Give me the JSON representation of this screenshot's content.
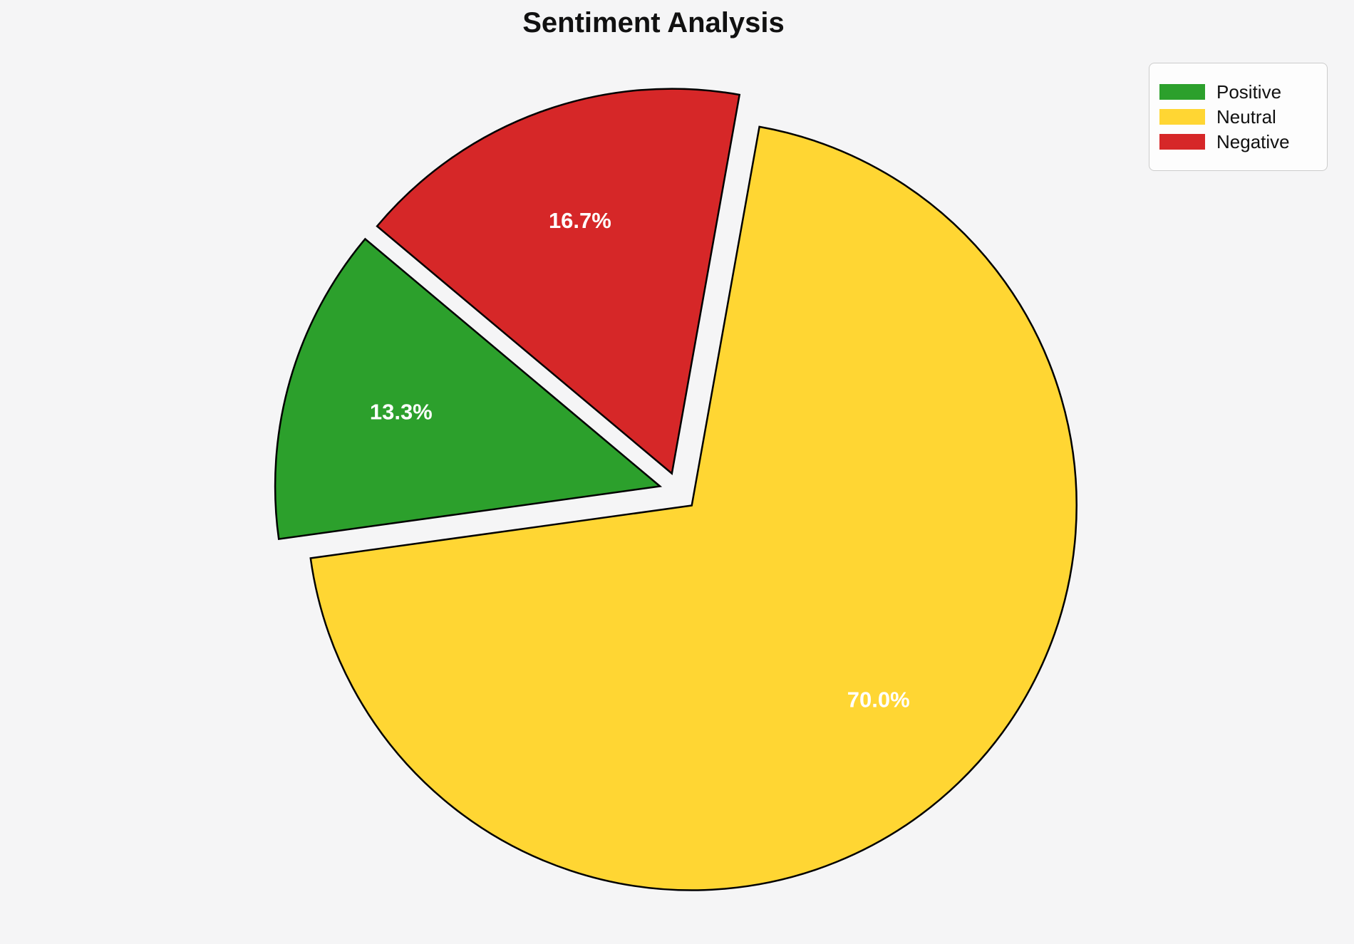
{
  "title": "Sentiment Analysis",
  "background_color": "#f5f5f6",
  "chart_data": {
    "type": "pie",
    "title": "Sentiment Analysis",
    "categories": [
      "Positive",
      "Neutral",
      "Negative"
    ],
    "values": [
      13.3,
      70.0,
      16.7
    ],
    "pct_labels": [
      "13.3%",
      "70.0%",
      "16.7%"
    ],
    "colors": [
      "#2ca02c",
      "#ffd633",
      "#d62728"
    ],
    "start_angle": 140,
    "counterclock": true,
    "explode": [
      0.05,
      0.05,
      0.05
    ],
    "edge_color": "#000000",
    "edge_width": 2.5,
    "pct_distance": 0.7,
    "pct_color": "#ffffff",
    "legend": {
      "position": "upper right",
      "entries": [
        {
          "label": "Positive",
          "color": "#2ca02c"
        },
        {
          "label": "Neutral",
          "color": "#ffd633"
        },
        {
          "label": "Negative",
          "color": "#d62728"
        }
      ]
    }
  }
}
